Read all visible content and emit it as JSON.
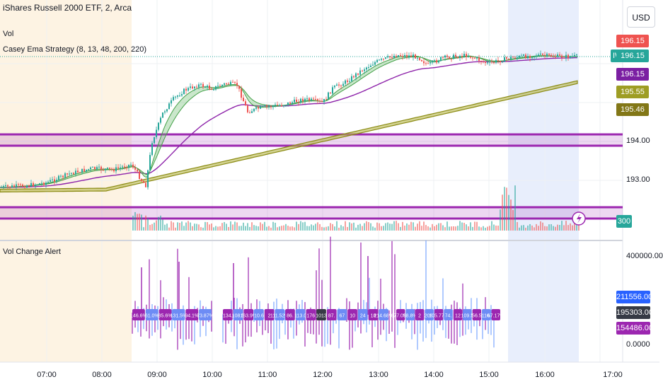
{
  "header": {
    "title": "iShares Russell 2000 ETF, 2, Arca",
    "vol_label": "Vol",
    "strategy_label": "Casey Ema Strategy (8, 13, 48, 200, 220)",
    "currency": "USD"
  },
  "price_scale": {
    "ticks": [
      "194.00",
      "193.00"
    ],
    "last_price_top": "196.15",
    "ticker_badge": "IWM",
    "last_price": "196.15",
    "ema_fast": "196.15",
    "ema_200": "195.55",
    "ema_220": "195.46",
    "vol_badge": "300"
  },
  "lower_pane": {
    "title": "Vol Change Alert",
    "ticks": [
      "400000.00",
      "0.0000"
    ],
    "badge_blue": "211556.00",
    "badge_dark": "195303.00",
    "badge_purple": "154486.00"
  },
  "time_axis": {
    "labels": [
      "07:00",
      "08:00",
      "09:00",
      "10:00",
      "11:00",
      "12:00",
      "13:00",
      "14:00",
      "15:00",
      "16:00",
      "17:00"
    ]
  },
  "alert_labels": {
    "group1": [
      "146.6%",
      "61.0%",
      "85.6%",
      "131.5%",
      "94.1%",
      "73.87%"
    ],
    "group2": [
      "134.",
      "108.5",
      "163.9%",
      "10.6",
      "2",
      "111.52%",
      "86.",
      "113.0",
      "176",
      "1013",
      "87.",
      "67",
      "10",
      "24",
      "18",
      "214.68%"
    ],
    "group3": [
      "77.0%",
      "58.8%",
      "2",
      "206.",
      "105.77%",
      "74.",
      "12",
      "109.5",
      "56.5",
      "116.",
      "67.17%"
    ]
  },
  "colors": {
    "up": "#26a69a",
    "down": "#ef5350",
    "ema_fast": "#4caf50",
    "ema_mid": "#9c27b0",
    "ema_slow": "#9a9a1a",
    "zone": "#9c27b0",
    "premarket_bg": "#fdf3e3",
    "session_bg": "#e8eefc",
    "alert_blue": "#2962ff",
    "alert_purple": "#9c27b0"
  }
}
